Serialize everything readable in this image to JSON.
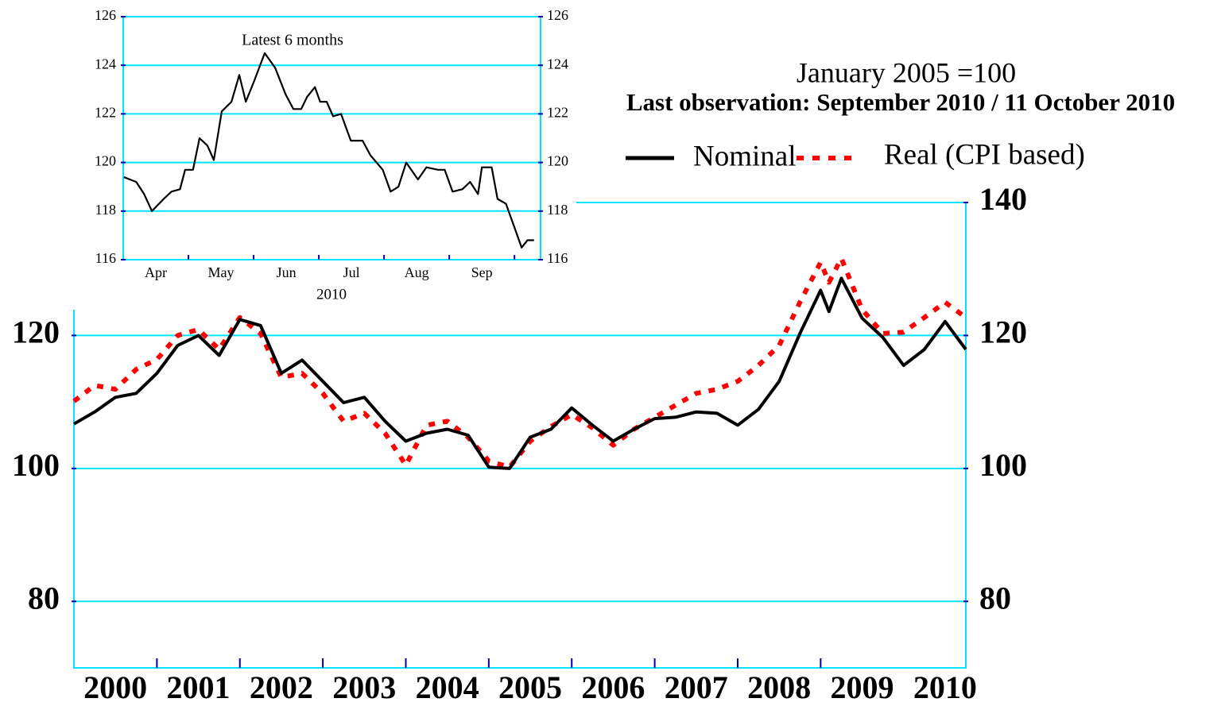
{
  "chart_data": [
    {
      "type": "line",
      "title": "January 2005 =100",
      "subtitle": "Last observation: September 2010 / 11 October 2010",
      "xlim": [
        2000,
        2010.75
      ],
      "xticks": [
        {
          "value": 2000.5,
          "label": "2000"
        },
        {
          "value": 2001.5,
          "label": "2001"
        },
        {
          "value": 2002.5,
          "label": "2002"
        },
        {
          "value": 2003.5,
          "label": "2003"
        },
        {
          "value": 2004.5,
          "label": "2004"
        },
        {
          "value": 2005.5,
          "label": "2005"
        },
        {
          "value": 2006.5,
          "label": "2006"
        },
        {
          "value": 2007.5,
          "label": "2007"
        },
        {
          "value": 2008.5,
          "label": "2008"
        },
        {
          "value": 2009.5,
          "label": "2009"
        },
        {
          "value": 2010.5,
          "label": "2010"
        }
      ],
      "xminorticks": [
        2001,
        2002,
        2003,
        2004,
        2005,
        2006,
        2007,
        2008,
        2009
      ],
      "ylim": [
        70,
        140
      ],
      "yticks": [
        80,
        100,
        120,
        140
      ],
      "grid": true,
      "mirror_y_labels": true,
      "x": [
        2000,
        2000.25,
        2000.5,
        2000.75,
        2001,
        2001.25,
        2001.5,
        2001.75,
        2002,
        2002.25,
        2002.5,
        2002.75,
        2003,
        2003.25,
        2003.5,
        2003.75,
        2004,
        2004.25,
        2004.5,
        2004.75,
        2005,
        2005.25,
        2005.5,
        2005.75,
        2006,
        2006.25,
        2006.5,
        2006.75,
        2007,
        2007.25,
        2007.5,
        2007.75,
        2008,
        2008.25,
        2008.5,
        2008.75,
        2009,
        2009.1,
        2009.25,
        2009.5,
        2009.75,
        2010,
        2010.25,
        2010.5,
        2010.75
      ],
      "series": [
        {
          "name": "Nominal",
          "color": "#000000",
          "style": "solid",
          "values": [
            106.7,
            108.5,
            110.7,
            111.3,
            114.3,
            118.5,
            120.0,
            117.0,
            122.4,
            121.5,
            114.3,
            116.3,
            113.1,
            109.9,
            110.7,
            107.1,
            104.1,
            105.3,
            105.9,
            105.0,
            100.2,
            100.0,
            104.7,
            105.9,
            109.1,
            106.5,
            104.1,
            105.9,
            107.5,
            107.7,
            108.5,
            108.3,
            106.5,
            108.9,
            113.1,
            120.3,
            126.8,
            123.6,
            128.6,
            122.6,
            119.7,
            115.5,
            117.9,
            122.1,
            117.9
          ]
        },
        {
          "name": "Real (CPI based)",
          "color": "#ff0000",
          "style": "dotted",
          "values": [
            110.1,
            112.5,
            111.9,
            114.9,
            116.4,
            120.0,
            120.9,
            117.9,
            122.7,
            120.3,
            113.7,
            114.3,
            111.3,
            107.1,
            108.3,
            105.3,
            100.5,
            106.5,
            107.1,
            104.7,
            101.1,
            100.2,
            104.1,
            106.3,
            108.1,
            106.1,
            103.5,
            105.9,
            107.7,
            109.5,
            111.3,
            111.9,
            113.1,
            115.5,
            118.5,
            125.0,
            131.0,
            128.0,
            131.6,
            123.9,
            120.3,
            120.5,
            122.7,
            125.0,
            122.7
          ]
        }
      ]
    },
    {
      "type": "line",
      "title": "Latest 6 months",
      "xlabel": "2010",
      "xlim": [
        4,
        10.4
      ],
      "xticks": [
        {
          "value": 4.5,
          "label": "Apr"
        },
        {
          "value": 5.5,
          "label": "May"
        },
        {
          "value": 6.5,
          "label": "Jun"
        },
        {
          "value": 7.5,
          "label": "Jul"
        },
        {
          "value": 8.5,
          "label": "Aug"
        },
        {
          "value": 9.5,
          "label": "Sep"
        }
      ],
      "xminorticks": [
        5,
        6,
        7,
        8,
        9,
        10
      ],
      "ylim": [
        116,
        126
      ],
      "yticks": [
        116,
        118,
        120,
        122,
        124,
        126
      ],
      "grid": true,
      "mirror_y_labels": true,
      "x": [
        4.01,
        4.2,
        4.32,
        4.44,
        4.62,
        4.74,
        4.87,
        4.95,
        5.07,
        5.17,
        5.29,
        5.39,
        5.51,
        5.66,
        5.78,
        5.88,
        6.0,
        6.17,
        6.33,
        6.49,
        6.61,
        6.73,
        6.82,
        6.94,
        7.02,
        7.12,
        7.22,
        7.34,
        7.49,
        7.67,
        7.79,
        7.98,
        8.1,
        8.22,
        8.34,
        8.52,
        8.65,
        8.83,
        8.93,
        9.05,
        9.2,
        9.32,
        9.44,
        9.5,
        9.65,
        9.74,
        9.87,
        9.99,
        10.11,
        10.2,
        10.3
      ],
      "series": [
        {
          "name": "Nominal",
          "color": "#000000",
          "style": "solid",
          "values": [
            119.4,
            119.2,
            118.7,
            118.0,
            118.5,
            118.8,
            118.9,
            119.7,
            119.7,
            121.0,
            120.7,
            120.1,
            122.1,
            122.5,
            123.6,
            122.5,
            123.3,
            124.5,
            123.9,
            122.8,
            122.2,
            122.2,
            122.7,
            123.1,
            122.5,
            122.5,
            121.9,
            122.0,
            120.9,
            120.9,
            120.3,
            119.7,
            118.8,
            119.0,
            120.0,
            119.3,
            119.8,
            119.7,
            119.7,
            118.8,
            118.9,
            119.2,
            118.7,
            119.8,
            119.8,
            118.5,
            118.3,
            117.4,
            116.5,
            116.8,
            116.8
          ]
        }
      ]
    }
  ]
}
